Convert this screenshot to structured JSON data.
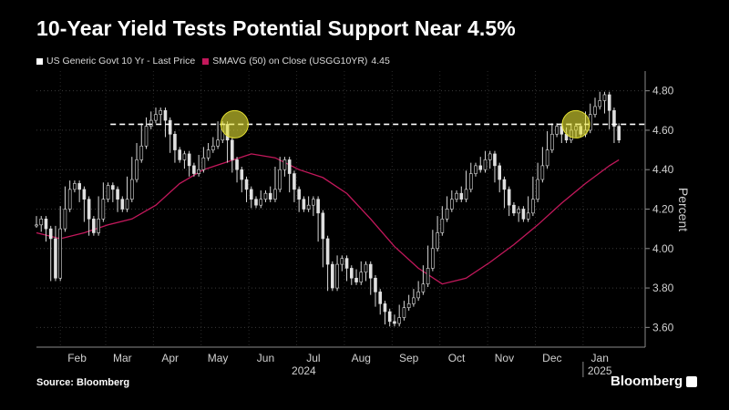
{
  "title": "10-Year Yield Tests Potential Support Near 4.5%",
  "legend": {
    "series1_label": "US Generic Govt 10 Yr - Last Price",
    "series2_label": "SMAVG (50)  on Close (USGG10YR)",
    "series2_value": "4.45"
  },
  "source": "Source: Bloomberg",
  "brand": "Bloomberg",
  "colors": {
    "background": "#000000",
    "price": "#ffffff",
    "sma": "#c2185b",
    "support_line": "#ffffff",
    "highlight": "#e6e233"
  },
  "chart_data": {
    "type": "line",
    "title": "10-Year Yield Tests Potential Support Near 4.5%",
    "ylabel": "Percent",
    "xlabel": "",
    "ylim": [
      3.5,
      4.9
    ],
    "yticks": [
      "3.60",
      "3.80",
      "4.00",
      "4.20",
      "4.40",
      "4.60",
      "4.80"
    ],
    "ytick_values": [
      3.6,
      3.8,
      4.0,
      4.2,
      4.4,
      4.6,
      4.8
    ],
    "xlim": [
      0,
      12.75
    ],
    "xticks": [
      {
        "label": "Feb",
        "pos": 0.85
      },
      {
        "label": "Mar",
        "pos": 1.8
      },
      {
        "label": "Apr",
        "pos": 2.8
      },
      {
        "label": "May",
        "pos": 3.8
      },
      {
        "label": "Jun",
        "pos": 4.8
      },
      {
        "label": "Jul",
        "pos": 5.8
      },
      {
        "label": "Aug",
        "pos": 6.8
      },
      {
        "label": "Sep",
        "pos": 7.8
      },
      {
        "label": "Oct",
        "pos": 8.8
      },
      {
        "label": "Nov",
        "pos": 9.8
      },
      {
        "label": "Dec",
        "pos": 10.8
      },
      {
        "label": "Jan",
        "pos": 11.8
      }
    ],
    "year_labels": [
      {
        "label": "2024",
        "pos": 5.6
      },
      {
        "label": "2025",
        "pos": 11.8
      }
    ],
    "year_divider_pos": 11.45,
    "support_level": 4.63,
    "highlights": [
      {
        "x": 4.15,
        "y": 4.63
      },
      {
        "x": 11.3,
        "y": 4.63
      }
    ],
    "series": [
      {
        "name": "US Generic Govt 10 Yr - Last Price",
        "x": [
          0.0,
          0.1,
          0.2,
          0.3,
          0.4,
          0.5,
          0.6,
          0.7,
          0.8,
          0.9,
          1.0,
          1.1,
          1.2,
          1.3,
          1.4,
          1.5,
          1.6,
          1.7,
          1.8,
          1.9,
          2.0,
          2.1,
          2.2,
          2.3,
          2.4,
          2.5,
          2.6,
          2.7,
          2.8,
          2.9,
          3.0,
          3.1,
          3.2,
          3.3,
          3.4,
          3.5,
          3.6,
          3.7,
          3.8,
          3.9,
          4.0,
          4.1,
          4.2,
          4.3,
          4.4,
          4.5,
          4.6,
          4.7,
          4.8,
          4.9,
          5.0,
          5.1,
          5.2,
          5.3,
          5.4,
          5.5,
          5.6,
          5.7,
          5.8,
          5.9,
          6.0,
          6.1,
          6.2,
          6.3,
          6.4,
          6.5,
          6.6,
          6.7,
          6.8,
          6.9,
          7.0,
          7.1,
          7.2,
          7.3,
          7.4,
          7.5,
          7.6,
          7.7,
          7.8,
          7.9,
          8.0,
          8.1,
          8.2,
          8.3,
          8.4,
          8.5,
          8.6,
          8.7,
          8.8,
          8.9,
          9.0,
          9.1,
          9.2,
          9.3,
          9.4,
          9.5,
          9.6,
          9.7,
          9.8,
          9.9,
          10.0,
          10.1,
          10.2,
          10.3,
          10.4,
          10.5,
          10.6,
          10.7,
          10.8,
          10.9,
          11.0,
          11.1,
          11.2,
          11.3,
          11.4,
          11.5,
          11.6,
          11.7,
          11.8,
          11.9,
          12.0,
          12.1,
          12.2
        ],
        "values": [
          4.12,
          4.15,
          4.1,
          4.05,
          3.85,
          4.1,
          4.2,
          4.3,
          4.33,
          4.3,
          4.25,
          4.15,
          4.08,
          4.15,
          4.25,
          4.32,
          4.3,
          4.25,
          4.2,
          4.25,
          4.35,
          4.45,
          4.52,
          4.62,
          4.65,
          4.68,
          4.7,
          4.65,
          4.58,
          4.5,
          4.45,
          4.48,
          4.42,
          4.38,
          4.4,
          4.46,
          4.5,
          4.52,
          4.55,
          4.63,
          4.55,
          4.45,
          4.4,
          4.35,
          4.3,
          4.25,
          4.22,
          4.25,
          4.28,
          4.25,
          4.3,
          4.4,
          4.45,
          4.38,
          4.3,
          4.25,
          4.2,
          4.22,
          4.25,
          4.18,
          4.05,
          3.92,
          3.8,
          3.92,
          3.95,
          3.9,
          3.85,
          3.83,
          3.88,
          3.92,
          3.85,
          3.78,
          3.72,
          3.68,
          3.63,
          3.62,
          3.65,
          3.7,
          3.72,
          3.75,
          3.78,
          3.82,
          3.9,
          4.0,
          4.08,
          4.15,
          4.2,
          4.25,
          4.28,
          4.25,
          4.3,
          4.38,
          4.42,
          4.4,
          4.45,
          4.48,
          4.42,
          4.35,
          4.3,
          4.22,
          4.18,
          4.2,
          4.15,
          4.18,
          4.25,
          4.35,
          4.42,
          4.5,
          4.58,
          4.62,
          4.58,
          4.55,
          4.6,
          4.62,
          4.58,
          4.6,
          4.68,
          4.72,
          4.75,
          4.78,
          4.7,
          4.62,
          4.55
        ]
      },
      {
        "name": "SMAVG (50)  on Close (USGG10YR)",
        "x": [
          0.0,
          0.5,
          1.0,
          1.5,
          2.0,
          2.5,
          3.0,
          3.5,
          4.0,
          4.5,
          5.0,
          5.5,
          6.0,
          6.5,
          7.0,
          7.5,
          8.0,
          8.5,
          9.0,
          9.5,
          10.0,
          10.5,
          11.0,
          11.5,
          12.0,
          12.2
        ],
        "values": [
          4.08,
          4.05,
          4.08,
          4.12,
          4.15,
          4.22,
          4.33,
          4.4,
          4.44,
          4.48,
          4.46,
          4.4,
          4.36,
          4.28,
          4.15,
          4.01,
          3.9,
          3.82,
          3.85,
          3.93,
          4.02,
          4.12,
          4.23,
          4.33,
          4.42,
          4.45
        ]
      }
    ]
  }
}
